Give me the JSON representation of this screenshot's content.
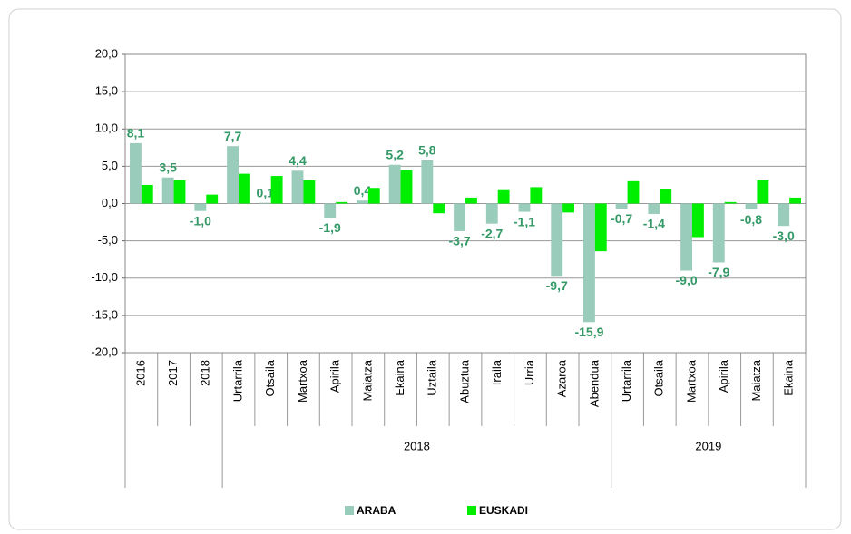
{
  "chart_data": {
    "type": "bar",
    "categories": [
      "2016",
      "2017",
      "2018",
      "Urtarrila",
      "Otsaila",
      "Martxoa",
      "Apirila",
      "Maiatza",
      "Ekaina",
      "Uztaila",
      "Abuztua",
      "Iraila",
      "Urria",
      "Azaroa",
      "Abendua",
      "Urtarrila",
      "Otsaila",
      "Martxoa",
      "Apirila",
      "Maiatza",
      "Ekaina"
    ],
    "groups": [
      {
        "label": null,
        "span": 3
      },
      {
        "label": "2018",
        "span": 12
      },
      {
        "label": "2019",
        "span": 6
      }
    ],
    "series": [
      {
        "name": "ARABA",
        "color": "#99ccbb",
        "values": [
          8.1,
          3.5,
          -1.0,
          7.7,
          0.1,
          4.4,
          -1.9,
          0.4,
          5.2,
          5.8,
          -3.7,
          -2.7,
          -1.1,
          -9.7,
          -15.9,
          -0.7,
          -1.4,
          -9.0,
          -7.9,
          -0.8,
          -3.0
        ],
        "value_labels": [
          "8,1",
          "3,5",
          "-1,0",
          "7,7",
          "0,1",
          "4,4",
          "-1,9",
          "0,4",
          "5,2",
          "5,8",
          "-3,7",
          "-2,7",
          "-1,1",
          "-9,7",
          "-15,9",
          "-0,7",
          "-1,4",
          "-9,0",
          "-7,9",
          "-0,8",
          "-3,0"
        ]
      },
      {
        "name": "EUSKADI",
        "color": "#00ee00",
        "values": [
          2.5,
          3.1,
          1.2,
          4.0,
          3.7,
          3.1,
          0.2,
          2.1,
          4.5,
          -1.3,
          0.8,
          1.8,
          2.2,
          -1.2,
          -6.4,
          3.0,
          2.0,
          -4.5,
          0.2,
          3.1,
          0.8
        ]
      }
    ],
    "label_color": "#339966",
    "ylim": [
      -20,
      20
    ],
    "yticks": [
      {
        "value": -20,
        "label": "-20,0"
      },
      {
        "value": -15,
        "label": "-15,0"
      },
      {
        "value": -10,
        "label": "-10,0"
      },
      {
        "value": -5,
        "label": "-5,0"
      },
      {
        "value": 0,
        "label": "0,0"
      },
      {
        "value": 5,
        "label": "5,0"
      },
      {
        "value": 10,
        "label": "10,0"
      },
      {
        "value": 15,
        "label": "15,0"
      },
      {
        "value": 20,
        "label": "20,0"
      }
    ],
    "grid": true,
    "legend": "bottom"
  }
}
